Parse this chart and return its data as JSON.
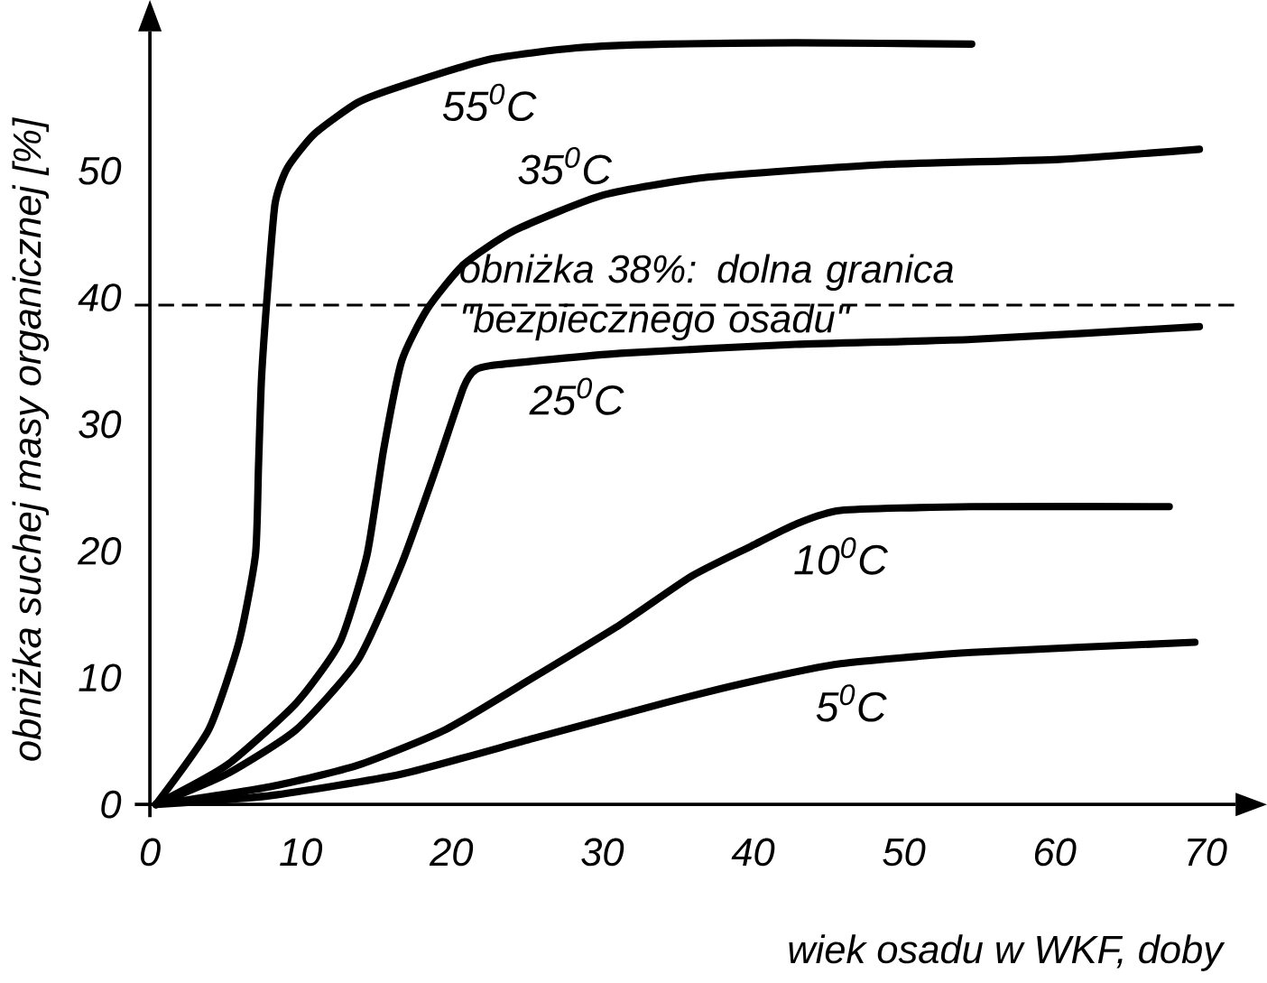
{
  "chart_data": {
    "type": "line",
    "xlabel": "wiek osadu w WKF, doby",
    "ylabel": "obniżka suchej masy organicznej [%]",
    "xlim": [
      -1,
      72
    ],
    "ylim": [
      -1,
      61
    ],
    "xticks": [
      0,
      10,
      20,
      30,
      40,
      50,
      60,
      70
    ],
    "yticks": [
      0,
      10,
      20,
      30,
      40,
      50
    ],
    "grid": false,
    "marker": "none",
    "line_style": "solid",
    "series": [
      {
        "name": "55$^{0}$C",
        "color": "#000000",
        "x": [
          0.4,
          3.9,
          5.9,
          7.0,
          7.2,
          7.4,
          7.8,
          8.3,
          9.1,
          10.9,
          13.8,
          16.7,
          22.5,
          28.3,
          34.1,
          42.8,
          54.5
        ],
        "values": [
          0,
          5.9,
          12.8,
          19.7,
          26.6,
          33.6,
          40.5,
          47.4,
          50.2,
          52.9,
          55.4,
          56.7,
          58.8,
          59.7,
          60.0,
          60.1,
          60.0
        ]
      },
      {
        "name": "35$^{0}$C",
        "color": "#000000",
        "x": [
          0.4,
          5.1,
          9.7,
          12.6,
          14.4,
          15.5,
          16.7,
          18.4,
          20.8,
          24.2,
          30.1,
          37.0,
          48.7,
          60.3,
          69.6
        ],
        "values": [
          0,
          3.1,
          8.0,
          12.8,
          19.7,
          28.0,
          35.0,
          39.1,
          42.6,
          45.3,
          48.1,
          49.5,
          50.5,
          50.9,
          51.7
        ]
      },
      {
        "name": "25$^{0}$C",
        "color": "#000000",
        "x": [
          0.4,
          5.1,
          9.7,
          13.8,
          16.7,
          19.0,
          20.8,
          21.6,
          23.1,
          31.2,
          42.8,
          54.5,
          69.6
        ],
        "values": [
          0,
          2.4,
          5.9,
          11.4,
          19.0,
          26.6,
          32.9,
          34.3,
          34.7,
          35.6,
          36.3,
          36.7,
          37.7
        ]
      },
      {
        "name": "10$^{0}$C",
        "color": "#000000",
        "x": [
          0.4,
          8.0,
          13.8,
          19.6,
          25.4,
          31.2,
          35.9,
          39.9,
          42.8,
          45.8,
          54.5,
          67.6
        ],
        "values": [
          0,
          1.4,
          3.1,
          5.9,
          10.0,
          14.2,
          18.0,
          20.4,
          22.1,
          23.2,
          23.5,
          23.5
        ]
      },
      {
        "name": "5$^{0}$C",
        "color": "#000000",
        "x": [
          0.4,
          8.0,
          16.7,
          25.4,
          34.1,
          39.9,
          45.8,
          54.5,
          69.3
        ],
        "values": [
          0,
          0.7,
          2.4,
          5.2,
          8.0,
          9.7,
          11.1,
          12.0,
          12.8
        ]
      }
    ],
    "ref_lines": [
      {
        "axis": "y",
        "value": 39.4,
        "label": "obniżka 38%: dolna granica \"bezpiecznego osadu\"",
        "line_style": "dashed",
        "color": "#000000"
      }
    ]
  }
}
